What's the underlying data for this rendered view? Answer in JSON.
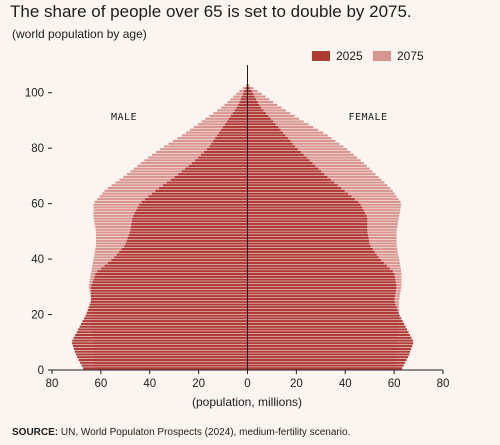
{
  "chart_data": {
    "type": "population-pyramid",
    "title": "The share of people over 65 is set to double by 2075.",
    "subtitle": "(world population by age)",
    "xlabel": "(population, millions)",
    "source_label": "SOURCE:",
    "source_text": " UN, World Populaton Prospects (2024), medium-fertility scenario.",
    "xlim": [
      -80,
      80
    ],
    "ylim": [
      0,
      110
    ],
    "x_ticks": [
      -80,
      -60,
      -40,
      -20,
      0,
      20,
      40,
      60,
      80
    ],
    "x_tick_labels": [
      "80",
      "60",
      "40",
      "20",
      "0",
      "20",
      "40",
      "60",
      "80"
    ],
    "y_ticks": [
      0,
      20,
      40,
      60,
      80,
      100
    ],
    "side_labels": {
      "left": "MALE",
      "right": "FEMALE"
    },
    "legend": [
      {
        "name": "2025",
        "color": "#b03a36"
      },
      {
        "name": "2075",
        "color": "#d99590"
      }
    ],
    "series": [
      {
        "name": "2025",
        "ages": [
          0,
          5,
          10,
          15,
          20,
          25,
          30,
          35,
          40,
          45,
          50,
          55,
          60,
          65,
          70,
          75,
          80,
          85,
          90,
          95,
          100,
          103
        ],
        "male": [
          67,
          70,
          72,
          69,
          66,
          64,
          64,
          62,
          55,
          50,
          48,
          47,
          44,
          37,
          29,
          22,
          16,
          12,
          8,
          4,
          1.5,
          0
        ],
        "female": [
          63,
          66,
          68,
          65,
          62,
          60,
          61,
          60,
          54,
          50,
          49,
          49,
          46,
          39,
          32,
          26,
          20,
          15,
          10,
          5,
          2,
          0
        ]
      },
      {
        "name": "2075",
        "ages": [
          0,
          5,
          10,
          15,
          20,
          25,
          30,
          35,
          40,
          45,
          50,
          55,
          60,
          65,
          70,
          75,
          80,
          85,
          90,
          95,
          100,
          103
        ],
        "male": [
          63,
          63,
          63,
          64,
          64,
          64,
          65,
          64,
          63,
          62,
          62,
          63,
          63,
          58,
          50,
          43,
          35,
          26,
          18,
          10,
          4,
          0
        ],
        "female": [
          61,
          61,
          61,
          62,
          62,
          62,
          63,
          63,
          62,
          61,
          61,
          62,
          63,
          59,
          53,
          47,
          40,
          32,
          22,
          13,
          5,
          0
        ]
      }
    ]
  }
}
